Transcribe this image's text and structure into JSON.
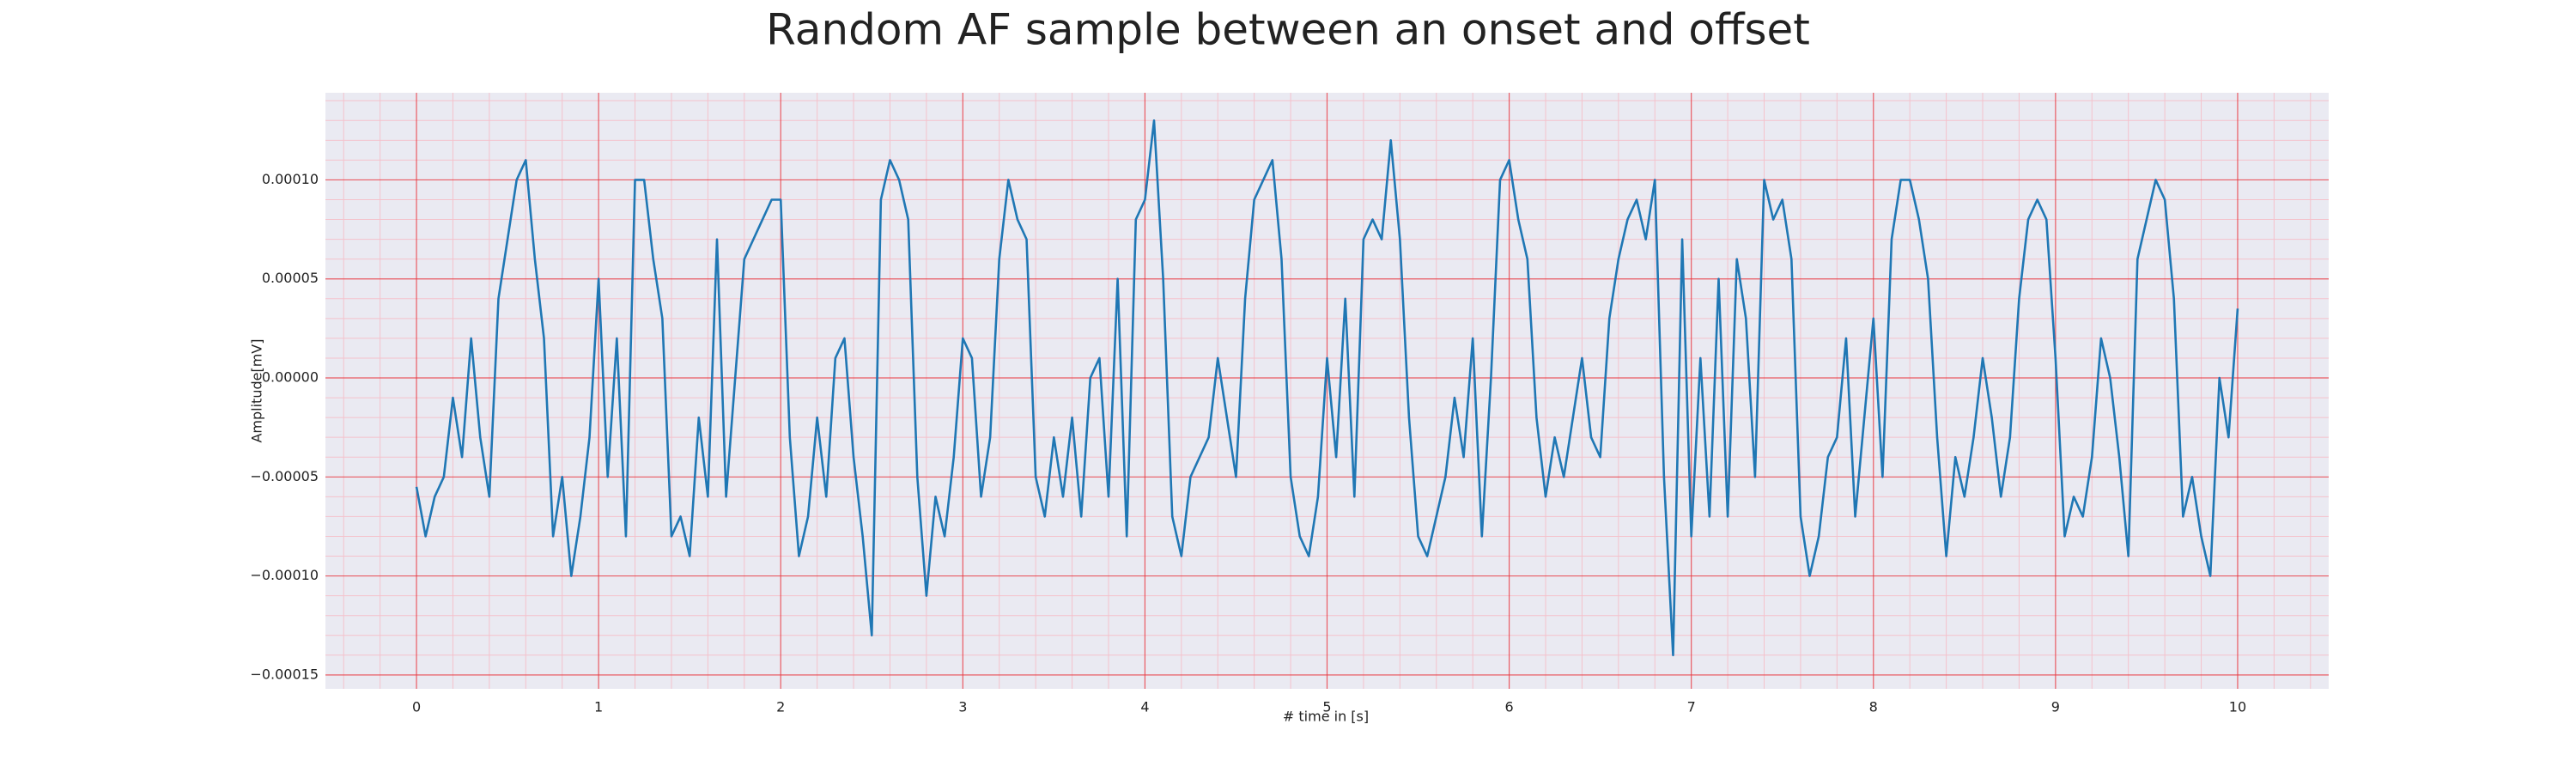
{
  "chart_data": {
    "type": "line",
    "title": "Random AF sample between an onset and offset",
    "xlabel": "# time in [s]",
    "ylabel": "Amplitude[mV]",
    "color": "#1f77b4",
    "grid": true,
    "minor_grid": true,
    "xlim": [
      -0.5,
      10.5
    ],
    "ylim": [
      -0.000157,
      0.000144
    ],
    "xticks": [
      0,
      1,
      2,
      3,
      4,
      5,
      6,
      7,
      8,
      9,
      10
    ],
    "yticks": [
      {
        "value": -0.00015,
        "label": "−0.00015"
      },
      {
        "value": -0.0001,
        "label": "−0.00010"
      },
      {
        "value": -5e-05,
        "label": "−0.00005"
      },
      {
        "value": 0,
        "label": "0.00000"
      },
      {
        "value": 5e-05,
        "label": "0.00005"
      },
      {
        "value": 0.0001,
        "label": "0.00010"
      }
    ],
    "x": [
      0,
      0.05,
      0.1,
      0.15,
      0.2,
      0.25,
      0.3,
      0.35,
      0.4,
      0.45,
      0.5,
      0.55,
      0.6,
      0.65,
      0.7,
      0.75,
      0.8,
      0.85,
      0.9,
      0.95,
      1,
      1.05,
      1.1,
      1.15,
      1.2,
      1.25,
      1.3,
      1.35,
      1.4,
      1.45,
      1.5,
      1.55,
      1.6,
      1.65,
      1.7,
      1.75,
      1.8,
      1.85,
      1.9,
      1.95,
      2,
      2.05,
      2.1,
      2.15,
      2.2,
      2.25,
      2.3,
      2.35,
      2.4,
      2.45,
      2.5,
      2.55,
      2.6,
      2.65,
      2.7,
      2.75,
      2.8,
      2.85,
      2.9,
      2.95,
      3,
      3.05,
      3.1,
      3.15,
      3.2,
      3.25,
      3.3,
      3.35,
      3.4,
      3.45,
      3.5,
      3.55,
      3.6,
      3.65,
      3.7,
      3.75,
      3.8,
      3.85,
      3.9,
      3.95,
      4,
      4.05,
      4.1,
      4.15,
      4.2,
      4.25,
      4.3,
      4.35,
      4.4,
      4.45,
      4.5,
      4.55,
      4.6,
      4.65,
      4.7,
      4.75,
      4.8,
      4.85,
      4.9,
      4.95,
      5,
      5.05,
      5.1,
      5.15,
      5.2,
      5.25,
      5.3,
      5.35,
      5.4,
      5.45,
      5.5,
      5.55,
      5.6,
      5.65,
      5.7,
      5.75,
      5.8,
      5.85,
      5.9,
      5.95,
      6,
      6.05,
      6.1,
      6.15,
      6.2,
      6.25,
      6.3,
      6.35,
      6.4,
      6.45,
      6.5,
      6.55,
      6.6,
      6.65,
      6.7,
      6.75,
      6.8,
      6.85,
      6.9,
      6.95,
      7,
      7.05,
      7.1,
      7.15,
      7.2,
      7.25,
      7.3,
      7.35,
      7.4,
      7.45,
      7.5,
      7.55,
      7.6,
      7.65,
      7.7,
      7.75,
      7.8,
      7.85,
      7.9,
      7.95,
      8,
      8.05,
      8.1,
      8.15,
      8.2,
      8.25,
      8.3,
      8.35,
      8.4,
      8.45,
      8.5,
      8.55,
      8.6,
      8.65,
      8.7,
      8.75,
      8.8,
      8.85,
      8.9,
      8.95,
      9,
      9.05,
      9.1,
      9.15,
      9.2,
      9.25,
      9.3,
      9.35,
      9.4,
      9.45,
      9.5,
      9.55,
      9.6,
      9.65,
      9.7,
      9.75,
      9.8,
      9.85,
      9.9,
      9.95,
      10
    ],
    "values": [
      -5.5e-05,
      -8e-05,
      -6e-05,
      -5e-05,
      -1e-05,
      -4e-05,
      2e-05,
      -3e-05,
      -6e-05,
      4e-05,
      7e-05,
      0.0001,
      0.00011,
      6e-05,
      2e-05,
      -8e-05,
      -5e-05,
      -0.0001,
      -7e-05,
      -3e-05,
      5e-05,
      -5e-05,
      2e-05,
      -8e-05,
      0.0001,
      0.0001,
      6e-05,
      3e-05,
      -8e-05,
      -7e-05,
      -9e-05,
      -2e-05,
      -6e-05,
      7e-05,
      -6e-05,
      0,
      6e-05,
      7e-05,
      8e-05,
      9e-05,
      9e-05,
      -3e-05,
      -9e-05,
      -7e-05,
      -2e-05,
      -6e-05,
      1e-05,
      2e-05,
      -4e-05,
      -8e-05,
      -0.00013,
      9e-05,
      0.00011,
      0.0001,
      8e-05,
      -5e-05,
      -0.00011,
      -6e-05,
      -8e-05,
      -4e-05,
      2e-05,
      1e-05,
      -6e-05,
      -3e-05,
      6e-05,
      0.0001,
      8e-05,
      7e-05,
      -5e-05,
      -7e-05,
      -3e-05,
      -6e-05,
      -2e-05,
      -7e-05,
      0,
      1e-05,
      -6e-05,
      5e-05,
      -8e-05,
      8e-05,
      9e-05,
      0.00013,
      5e-05,
      -7e-05,
      -9e-05,
      -5e-05,
      -4e-05,
      -3e-05,
      1e-05,
      -2e-05,
      -5e-05,
      4e-05,
      9e-05,
      0.0001,
      0.00011,
      6e-05,
      -5e-05,
      -8e-05,
      -9e-05,
      -6e-05,
      1e-05,
      -4e-05,
      4e-05,
      -6e-05,
      7e-05,
      8e-05,
      7e-05,
      0.00012,
      7e-05,
      -2e-05,
      -8e-05,
      -9e-05,
      -7e-05,
      -5e-05,
      -1e-05,
      -4e-05,
      2e-05,
      -8e-05,
      0,
      0.0001,
      0.00011,
      8e-05,
      6e-05,
      -2e-05,
      -6e-05,
      -3e-05,
      -5e-05,
      -2e-05,
      1e-05,
      -3e-05,
      -4e-05,
      3e-05,
      6e-05,
      8e-05,
      9e-05,
      7e-05,
      0.0001,
      -5e-05,
      -0.00014,
      7e-05,
      -8e-05,
      1e-05,
      -7e-05,
      5e-05,
      -7e-05,
      6e-05,
      3e-05,
      -5e-05,
      0.0001,
      8e-05,
      9e-05,
      6e-05,
      -7e-05,
      -0.0001,
      -8e-05,
      -4e-05,
      -3e-05,
      2e-05,
      -7e-05,
      -2e-05,
      3e-05,
      -5e-05,
      7e-05,
      0.0001,
      0.0001,
      8e-05,
      5e-05,
      -3e-05,
      -9e-05,
      -4e-05,
      -6e-05,
      -3e-05,
      1e-05,
      -2e-05,
      -6e-05,
      -3e-05,
      4e-05,
      8e-05,
      9e-05,
      8e-05,
      1e-05,
      -8e-05,
      -6e-05,
      -7e-05,
      -4e-05,
      2e-05,
      0,
      -4e-05,
      -9e-05,
      6e-05,
      8e-05,
      0.0001,
      9e-05,
      4e-05,
      -7e-05,
      -5e-05,
      -8e-05,
      -0.0001,
      0,
      -3e-05,
      3.5e-05
    ]
  }
}
